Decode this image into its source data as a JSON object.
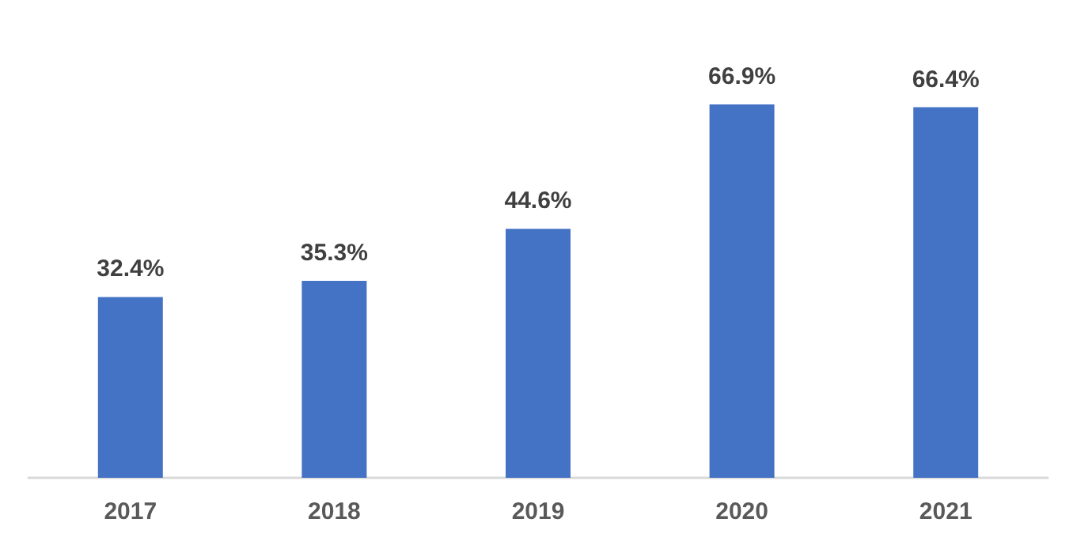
{
  "chart_data": {
    "type": "bar",
    "categories": [
      "2017",
      "2018",
      "2019",
      "2020",
      "2021"
    ],
    "values": [
      32.4,
      35.3,
      44.6,
      66.9,
      66.4
    ],
    "value_labels": [
      "32.4%",
      "35.3%",
      "44.6%",
      "66.9%",
      "66.4%"
    ],
    "color": "#4472c4"
  }
}
